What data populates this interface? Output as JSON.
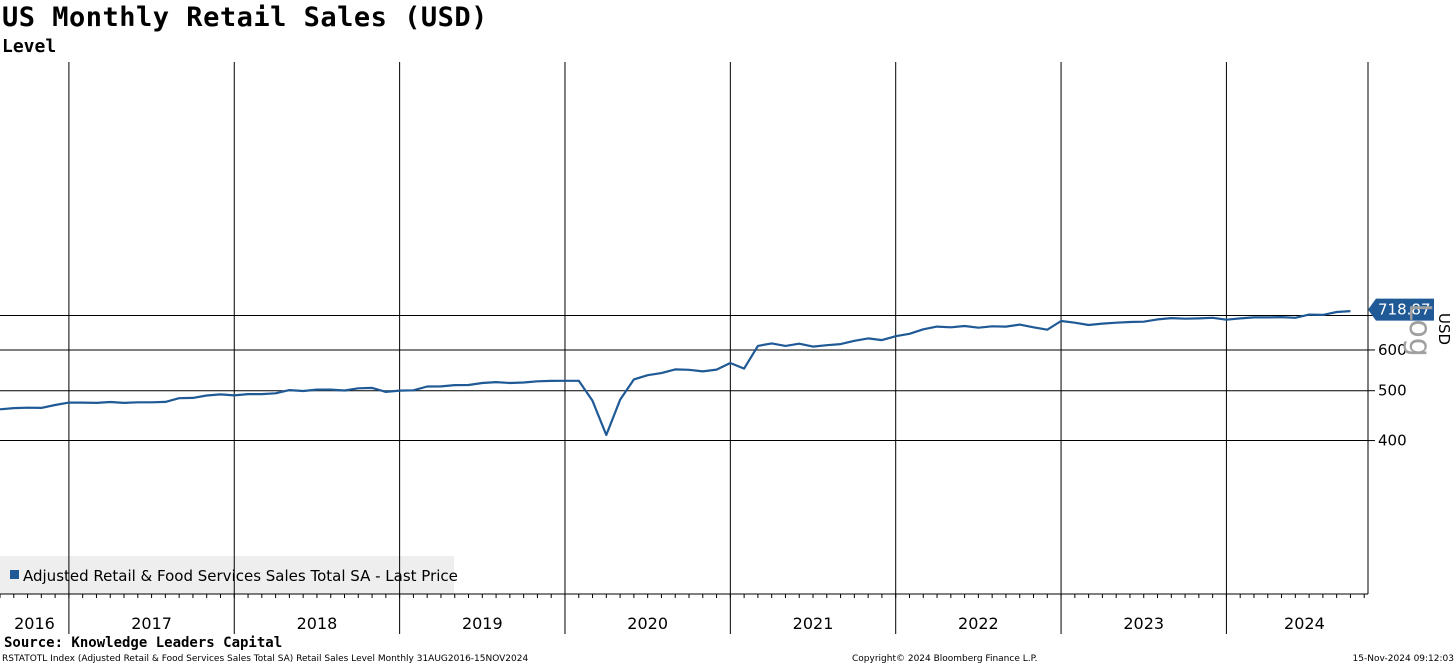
{
  "header": {
    "title": "US Monthly Retail Sales (USD)",
    "subtitle": "Level"
  },
  "footer": {
    "source": "Source:  Knowledge Leaders Capital",
    "description": "RSTATOTL Index (Adjusted Retail & Food Services Sales Total SA) Retail Sales Level  Monthly 31AUG2016-15NOV2024",
    "copyright": "Copyright© 2024 Bloomberg Finance L.P.",
    "timestamp": "15-Nov-2024 09:12:03"
  },
  "colors": {
    "series": "#1f5a96",
    "grid": "#000000",
    "legend_bg": "#eeeeee",
    "scale_label": "#a0a0a0"
  },
  "chart_data": {
    "type": "line",
    "title": "US Monthly Retail Sales (USD)",
    "subtitle": "Level",
    "ylabel": "USD",
    "scale": "Log",
    "scale_label": "Log",
    "ylim": [
      388,
      740
    ],
    "yticks": [
      400,
      500,
      600,
      700
    ],
    "x_start": "2016-08",
    "year_labels": [
      "2016",
      "2017",
      "2018",
      "2019",
      "2020",
      "2021",
      "2022",
      "2023",
      "2024"
    ],
    "grid": true,
    "legend_position": "bottom-left",
    "last_value_label": "718.87",
    "series": [
      {
        "name": "Adjusted Retail & Food Services Sales Total SA - Last Price",
        "color": "#1f5a96",
        "values": [
          460.0,
          462.5,
          463.3,
          463.0,
          469.0,
          474.1,
          474.0,
          473.5,
          475.4,
          473.5,
          474.7,
          474.7,
          475.6,
          483.5,
          484.2,
          489.3,
          491.8,
          489.6,
          492.5,
          492.4,
          494.2,
          501.3,
          499.4,
          502.5,
          502.5,
          500.5,
          505.4,
          506.3,
          497.3,
          500.3,
          500.8,
          509.4,
          509.7,
          512.7,
          513.0,
          517.5,
          519.7,
          517.6,
          518.8,
          521.4,
          522.4,
          522.6,
          522.6,
          478.0,
          410.0,
          480.0,
          526.0,
          536.0,
          541.0,
          550.0,
          549.0,
          545.0,
          549.5,
          566.0,
          552.0,
          611.0,
          618.0,
          611.0,
          617.0,
          609.0,
          613.0,
          616.0,
          625.0,
          632.0,
          627.0,
          638.0,
          645.0,
          658.0,
          666.0,
          664.0,
          668.0,
          663.0,
          667.0,
          666.0,
          672.0,
          664.0,
          657.0,
          683.0,
          678.0,
          671.0,
          675.0,
          678.0,
          680.0,
          681.0,
          688.0,
          692.0,
          690.0,
          691.0,
          693.0,
          687.0,
          691.0,
          694.0,
          694.0,
          695.0,
          693.0,
          703.0,
          702.0,
          711.0,
          714.0
        ]
      }
    ]
  }
}
